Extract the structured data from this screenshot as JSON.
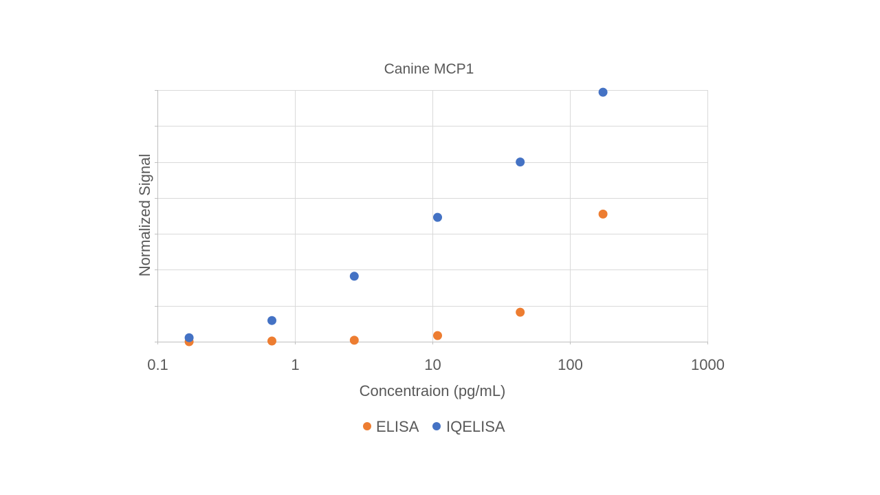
{
  "chart_data": {
    "type": "scatter",
    "title": "Canine MCP1",
    "xlabel": "Concentraion (pg/mL)",
    "ylabel": "Normalized Signal",
    "x_scale": "log",
    "xlim": [
      0.1,
      1000
    ],
    "x_ticks": [
      0.1,
      1,
      10,
      100,
      1000
    ],
    "x_tick_labels": [
      "0.1",
      "1",
      "10",
      "100",
      "1000"
    ],
    "ylim": [
      0,
      7
    ],
    "y_tick_count": 7,
    "y_tick_labels_shown": false,
    "grid": true,
    "legend_position": "bottom",
    "series": [
      {
        "name": "ELISA",
        "color": "#ED7D31",
        "x": [
          0.17,
          0.68,
          2.7,
          10.9,
          43.5,
          174
        ],
        "y": [
          0.0,
          0.02,
          0.04,
          0.17,
          0.82,
          3.55
        ]
      },
      {
        "name": "IQELISA",
        "color": "#4472C4",
        "x": [
          0.17,
          0.68,
          2.7,
          10.9,
          43.5,
          174
        ],
        "y": [
          0.11,
          0.59,
          1.82,
          3.46,
          5.0,
          6.94
        ]
      }
    ]
  }
}
